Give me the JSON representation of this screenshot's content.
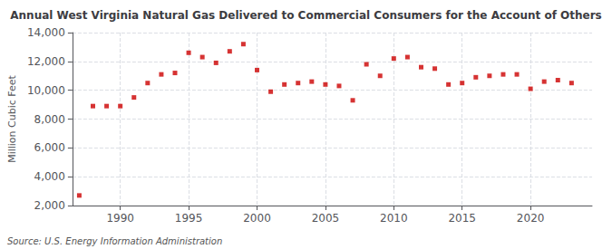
{
  "chart_data": {
    "type": "scatter",
    "title": "Annual West Virginia Natural Gas Delivered to Commercial Consumers for the Account of Others",
    "ylabel": "Million Cubic Feet",
    "annotations": [
      "Source: U.S. Energy Information Administration"
    ],
    "x": [
      1987,
      1988,
      1989,
      1990,
      1991,
      1992,
      1993,
      1994,
      1995,
      1996,
      1997,
      1998,
      1999,
      2000,
      2001,
      2002,
      2003,
      2004,
      2005,
      2006,
      2007,
      2008,
      2009,
      2010,
      2011,
      2012,
      2013,
      2014,
      2015,
      2016,
      2017,
      2018,
      2019,
      2020,
      2021,
      2022,
      2023
    ],
    "values": [
      2700,
      8900,
      8900,
      8900,
      9500,
      10500,
      11100,
      11200,
      12600,
      12300,
      11900,
      12700,
      13200,
      11400,
      9900,
      10400,
      10500,
      10600,
      10400,
      10300,
      9300,
      11800,
      11000,
      12200,
      12300,
      11600,
      11500,
      10400,
      10500,
      10900,
      11000,
      11100,
      11100,
      10100,
      10600,
      10700,
      10500
    ],
    "color": "#cc0000",
    "marker": "square",
    "xlim": [
      1986.5,
      2024.5
    ],
    "xticks": [
      1990,
      1995,
      2000,
      2005,
      2010,
      2015,
      2020
    ],
    "ylim": [
      2000,
      14000
    ],
    "yticks": [
      {
        "value": 2000,
        "label": "2,000"
      },
      {
        "value": 4000,
        "label": "4,000"
      },
      {
        "value": 6000,
        "label": "6,000"
      },
      {
        "value": 8000,
        "label": "8,000"
      },
      {
        "value": 10000,
        "label": "10,000"
      },
      {
        "value": 12000,
        "label": "12,000"
      },
      {
        "value": 14000,
        "label": "14,000"
      }
    ],
    "grid": true
  }
}
